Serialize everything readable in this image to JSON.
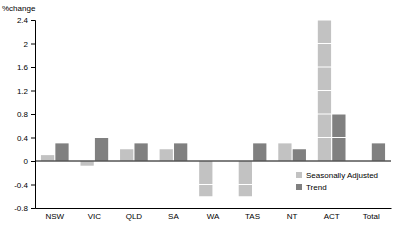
{
  "chart_data": {
    "type": "bar",
    "y_label": "%change",
    "categories": [
      "NSW",
      "VIC",
      "QLD",
      "SA",
      "WA",
      "TAS",
      "NT",
      "ACT",
      "Total"
    ],
    "series": [
      {
        "name": "Seasonally Adjusted",
        "color": "#c2c2c2",
        "values": [
          0.1,
          -0.08,
          0.2,
          0.2,
          -0.6,
          -0.6,
          0.3,
          2.4,
          0
        ]
      },
      {
        "name": "Trend",
        "color": "#808080",
        "values": [
          0.3,
          0.4,
          0.3,
          0.3,
          0,
          0.3,
          0.2,
          0.8,
          0.3
        ]
      }
    ],
    "ylim": [
      -0.8,
      2.4
    ],
    "yticks": [
      -0.8,
      -0.4,
      0,
      0.4,
      0.8,
      1.2,
      1.6,
      2,
      2.4
    ],
    "grid": true,
    "legend": "lower right"
  }
}
